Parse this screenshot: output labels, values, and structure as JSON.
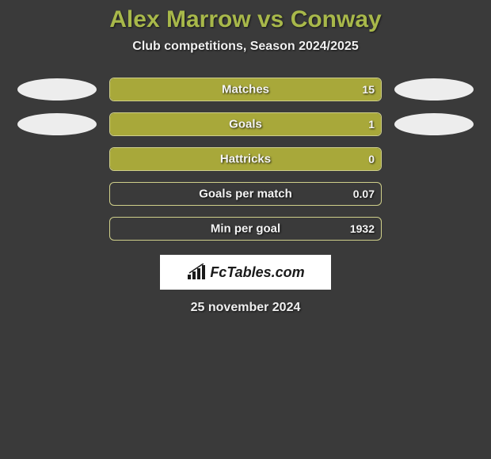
{
  "header": {
    "title": "Alex Marrow vs Conway",
    "subtitle": "Club competitions, Season 2024/2025"
  },
  "colors": {
    "bar_fill": "#a8a83a",
    "bar_border": "#cfcf8a",
    "title_color": "#a8b84a",
    "ellipse": "#ededed",
    "bg": "#3a3a3a",
    "text": "#f0f0f0"
  },
  "rows": [
    {
      "label": "Matches",
      "value_text": "15",
      "left_fill_pct": 100,
      "right_fill_pct": 0,
      "show_left_ellipse": true,
      "show_right_ellipse": true
    },
    {
      "label": "Goals",
      "value_text": "1",
      "left_fill_pct": 100,
      "right_fill_pct": 0,
      "show_left_ellipse": true,
      "show_right_ellipse": true
    },
    {
      "label": "Hattricks",
      "value_text": "0",
      "left_fill_pct": 100,
      "right_fill_pct": 0,
      "show_left_ellipse": false,
      "show_right_ellipse": false
    },
    {
      "label": "Goals per match",
      "value_text": "0.07",
      "left_fill_pct": 0,
      "right_fill_pct": 0,
      "show_left_ellipse": false,
      "show_right_ellipse": false
    },
    {
      "label": "Min per goal",
      "value_text": "1932",
      "left_fill_pct": 0,
      "right_fill_pct": 0,
      "show_left_ellipse": false,
      "show_right_ellipse": false
    }
  ],
  "brand": {
    "text": "FcTables.com"
  },
  "date": "25 november 2024",
  "typography": {
    "title_fontsize": 30,
    "subtitle_fontsize": 16,
    "label_fontsize": 15,
    "value_fontsize": 14,
    "brand_fontsize": 18,
    "date_fontsize": 16
  }
}
